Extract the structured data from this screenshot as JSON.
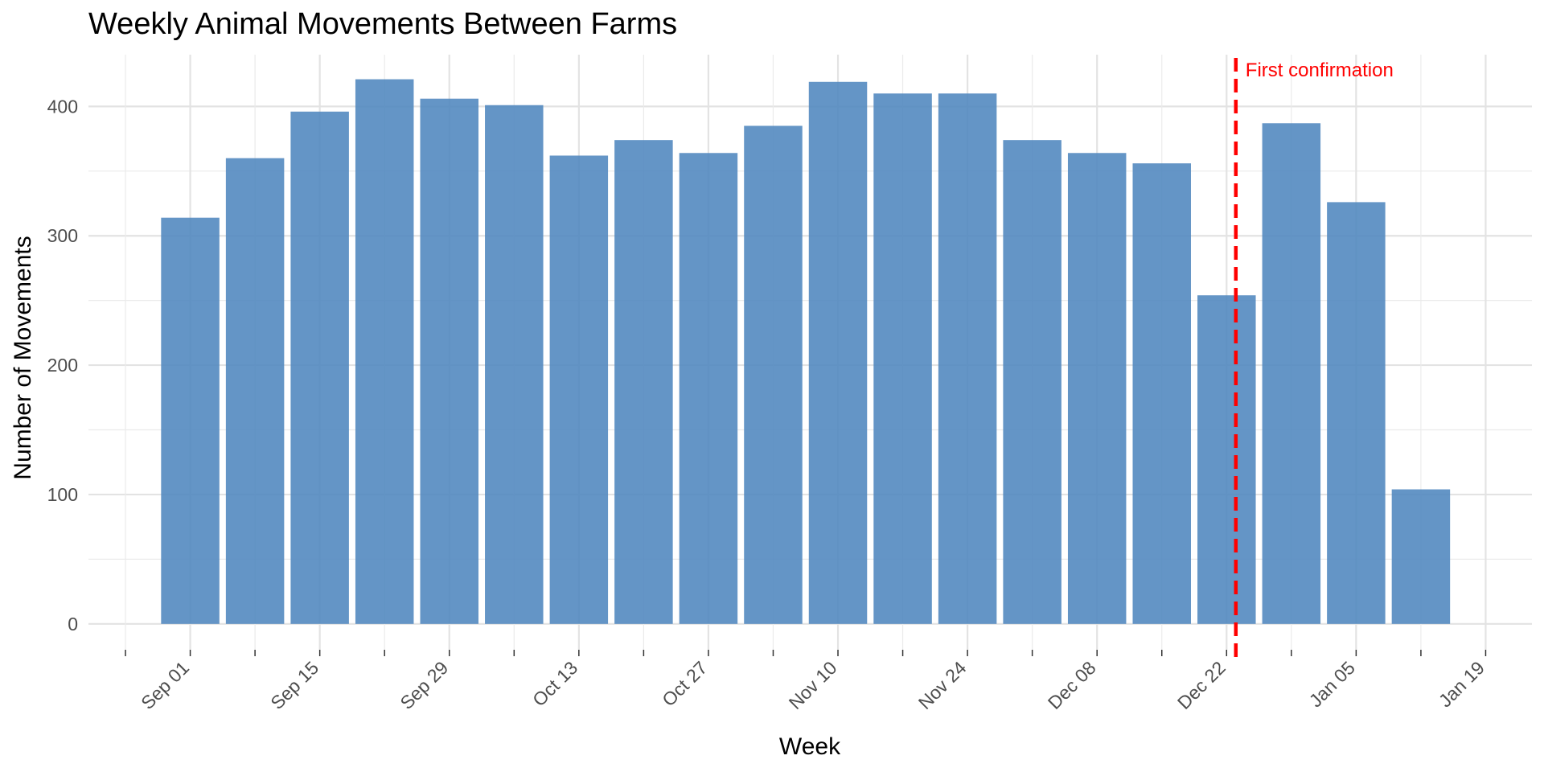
{
  "chart_data": {
    "type": "bar",
    "title": "Weekly Animal Movements Between Farms",
    "xlabel": "Week",
    "ylabel": "Number of Movements",
    "x": [
      "2023-09-01",
      "2023-09-08",
      "2023-09-15",
      "2023-09-22",
      "2023-09-29",
      "2023-10-06",
      "2023-10-13",
      "2023-10-20",
      "2023-10-27",
      "2023-11-03",
      "2023-11-10",
      "2023-11-17",
      "2023-11-24",
      "2023-12-01",
      "2023-12-08",
      "2023-12-15",
      "2023-12-22",
      "2023-12-29",
      "2024-01-05",
      "2024-01-12"
    ],
    "values": [
      314,
      360,
      396,
      421,
      406,
      401,
      362,
      374,
      364,
      385,
      419,
      410,
      410,
      374,
      364,
      356,
      254,
      387,
      326,
      104
    ],
    "xlim": [
      "2023-08-21",
      "2024-01-24"
    ],
    "ylim": [
      -20,
      440
    ],
    "x_ticks": [
      {
        "date": "2023-08-25",
        "label": ""
      },
      {
        "date": "2023-09-01",
        "label": "Sep 01"
      },
      {
        "date": "2023-09-08",
        "label": ""
      },
      {
        "date": "2023-09-15",
        "label": "Sep 15"
      },
      {
        "date": "2023-09-22",
        "label": ""
      },
      {
        "date": "2023-09-29",
        "label": "Sep 29"
      },
      {
        "date": "2023-10-06",
        "label": ""
      },
      {
        "date": "2023-10-13",
        "label": "Oct 13"
      },
      {
        "date": "2023-10-20",
        "label": ""
      },
      {
        "date": "2023-10-27",
        "label": "Oct 27"
      },
      {
        "date": "2023-11-03",
        "label": ""
      },
      {
        "date": "2023-11-10",
        "label": "Nov 10"
      },
      {
        "date": "2023-11-17",
        "label": ""
      },
      {
        "date": "2023-11-24",
        "label": "Nov 24"
      },
      {
        "date": "2023-12-01",
        "label": ""
      },
      {
        "date": "2023-12-08",
        "label": "Dec 08"
      },
      {
        "date": "2023-12-15",
        "label": ""
      },
      {
        "date": "2023-12-22",
        "label": "Dec 22"
      },
      {
        "date": "2023-12-29",
        "label": ""
      },
      {
        "date": "2024-01-05",
        "label": "Jan 05"
      },
      {
        "date": "2024-01-12",
        "label": ""
      },
      {
        "date": "2024-01-19",
        "label": "Jan 19"
      }
    ],
    "y_ticks": [
      0,
      100,
      200,
      300,
      400
    ],
    "y_minor_ticks": [
      50,
      150,
      250,
      350
    ],
    "bar_color": "#4F86BE",
    "grid": true,
    "annotations": [
      {
        "type": "vline",
        "x": "2023-12-23",
        "label": "First confirmation",
        "color": "#FF0000",
        "style": "dashed"
      }
    ]
  }
}
